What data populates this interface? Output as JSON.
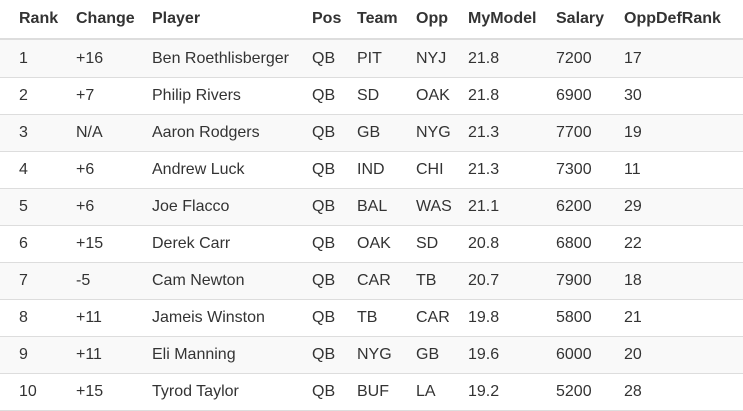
{
  "table": {
    "headers": [
      "Rank",
      "Change",
      "Player",
      "Pos",
      "Team",
      "Opp",
      "MyModel",
      "Salary",
      "OppDefRank"
    ],
    "rows": [
      [
        "1",
        "+16",
        "Ben Roethlisberger",
        "QB",
        "PIT",
        "NYJ",
        "21.8",
        "7200",
        "17"
      ],
      [
        "2",
        "+7",
        "Philip Rivers",
        "QB",
        "SD",
        "OAK",
        "21.8",
        "6900",
        "30"
      ],
      [
        "3",
        "N/A",
        "Aaron Rodgers",
        "QB",
        "GB",
        "NYG",
        "21.3",
        "7700",
        "19"
      ],
      [
        "4",
        "+6",
        "Andrew Luck",
        "QB",
        "IND",
        "CHI",
        "21.3",
        "7300",
        "11"
      ],
      [
        "5",
        "+6",
        "Joe Flacco",
        "QB",
        "BAL",
        "WAS",
        "21.1",
        "6200",
        "29"
      ],
      [
        "6",
        "+15",
        "Derek Carr",
        "QB",
        "OAK",
        "SD",
        "20.8",
        "6800",
        "22"
      ],
      [
        "7",
        "-5",
        "Cam Newton",
        "QB",
        "CAR",
        "TB",
        "20.7",
        "7900",
        "18"
      ],
      [
        "8",
        "+11",
        "Jameis Winston",
        "QB",
        "TB",
        "CAR",
        "19.8",
        "5800",
        "21"
      ],
      [
        "9",
        "+11",
        "Eli Manning",
        "QB",
        "NYG",
        "GB",
        "19.6",
        "6000",
        "20"
      ],
      [
        "10",
        "+15",
        "Tyrod Taylor",
        "QB",
        "BUF",
        "LA",
        "19.2",
        "5200",
        "28"
      ]
    ]
  }
}
